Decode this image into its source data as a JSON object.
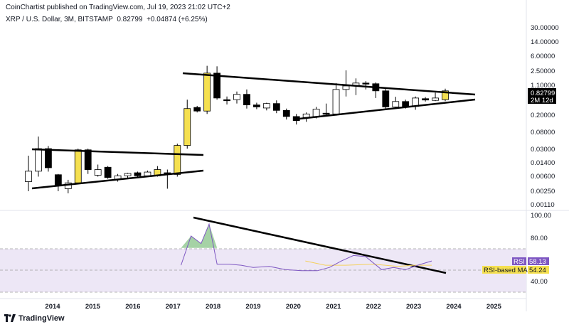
{
  "header": {
    "published": "CoinChartist published on TradingView.com, Jul 19, 2023 21:02 UTC+2",
    "symbol": "XRP / U.S. Dollar, 3M, BITSTAMP",
    "last": "0.82799",
    "change": "+0.04874 (+6.25%)"
  },
  "price_axis": {
    "ticks": [
      "30.00000",
      "14.00000",
      "6.00000",
      "2.50000",
      "1.10000",
      "0.20000",
      "0.08000",
      "0.03000",
      "0.01400",
      "0.00600",
      "0.00250",
      "0.00110"
    ],
    "current_price_label": "0.82799",
    "countdown_label": "2M 12d"
  },
  "rsi_axis": {
    "ticks": [
      "100.00",
      "80.00",
      "40.00"
    ],
    "rsi_label": "RSI",
    "rsi_value": "58.13",
    "ma_label": "RSI-based MA",
    "ma_value": "54.24"
  },
  "time_axis": {
    "labels": [
      "2014",
      "2015",
      "2016",
      "2017",
      "2018",
      "2019",
      "2020",
      "2021",
      "2022",
      "2023",
      "2024",
      "2025"
    ]
  },
  "footer": {
    "brand": "TradingView"
  },
  "colors": {
    "bull_candle_body": "#ffffff",
    "bear_candle_body": "#000000",
    "highlight_candle": "#f5e050",
    "rsi_line": "#7e57c2",
    "rsi_ma_line": "#f5d15c",
    "rsi_band_fill": "#ede7f6",
    "rsi_overbought_fill": "#7fbf7f",
    "trendline": "#000000"
  },
  "chart_data": {
    "type": "candlestick",
    "title": "XRP / U.S. Dollar, 3M, BITSTAMP",
    "y_scale": "log",
    "candles": [
      {
        "t": "2013-Q4",
        "o": 0.0045,
        "h": 0.02,
        "l": 0.0026,
        "c": 0.0082,
        "color": "bull"
      },
      {
        "t": "2014-Q1",
        "o": 0.0082,
        "h": 0.06,
        "l": 0.006,
        "c": 0.03,
        "color": "bull"
      },
      {
        "t": "2014-Q2",
        "o": 0.03,
        "h": 0.035,
        "l": 0.008,
        "c": 0.01,
        "color": "bear"
      },
      {
        "t": "2014-Q3",
        "o": 0.0067,
        "h": 0.007,
        "l": 0.0026,
        "c": 0.0035,
        "color": "bear"
      },
      {
        "t": "2014-Q4",
        "o": 0.003,
        "h": 0.005,
        "l": 0.0023,
        "c": 0.0042,
        "color": "bull"
      },
      {
        "t": "2015-Q1",
        "o": 0.0042,
        "h": 0.03,
        "l": 0.004,
        "c": 0.028,
        "color": "highlight"
      },
      {
        "t": "2015-Q2",
        "o": 0.028,
        "h": 0.03,
        "l": 0.007,
        "c": 0.009,
        "color": "bear"
      },
      {
        "t": "2015-Q3",
        "o": 0.009,
        "h": 0.012,
        "l": 0.006,
        "c": 0.0065,
        "color": "bull"
      },
      {
        "t": "2015-Q4",
        "o": 0.0103,
        "h": 0.011,
        "l": 0.0053,
        "c": 0.0057,
        "color": "bear"
      },
      {
        "t": "2016-Q1",
        "o": 0.0052,
        "h": 0.007,
        "l": 0.0045,
        "c": 0.0063,
        "color": "bull"
      },
      {
        "t": "2016-Q2",
        "o": 0.0063,
        "h": 0.0075,
        "l": 0.0055,
        "c": 0.0072,
        "color": "bull"
      },
      {
        "t": "2016-Q3",
        "o": 0.0075,
        "h": 0.008,
        "l": 0.0058,
        "c": 0.0063,
        "color": "bear"
      },
      {
        "t": "2016-Q4",
        "o": 0.0063,
        "h": 0.0085,
        "l": 0.006,
        "c": 0.0078,
        "color": "bull"
      },
      {
        "t": "2017-Q1",
        "o": 0.0063,
        "h": 0.011,
        "l": 0.006,
        "c": 0.009,
        "color": "highlight"
      },
      {
        "t": "2017-Q2",
        "o": 0.0075,
        "h": 0.009,
        "l": 0.003,
        "c": 0.0068,
        "color": "bear"
      },
      {
        "t": "2017-Q3",
        "o": 0.0068,
        "h": 0.04,
        "l": 0.006,
        "c": 0.036,
        "color": "highlight"
      },
      {
        "t": "2017-Q4",
        "o": 0.036,
        "h": 0.5,
        "l": 0.03,
        "c": 0.3,
        "color": "highlight"
      },
      {
        "t": "2018-Q1",
        "o": 0.32,
        "h": 0.35,
        "l": 0.24,
        "c": 0.26,
        "color": "bear"
      },
      {
        "t": "2018-Q2",
        "o": 0.26,
        "h": 3.5,
        "l": 0.22,
        "c": 2.3,
        "color": "highlight"
      },
      {
        "t": "2018-Q3",
        "o": 2.3,
        "h": 3.4,
        "l": 0.5,
        "c": 0.55,
        "color": "bear"
      },
      {
        "t": "2018-Q4",
        "o": 0.5,
        "h": 0.6,
        "l": 0.38,
        "c": 0.5,
        "color": "bear"
      },
      {
        "t": "2019-Q1",
        "o": 0.5,
        "h": 0.8,
        "l": 0.4,
        "c": 0.68,
        "color": "bull"
      },
      {
        "t": "2019-Q2",
        "o": 0.68,
        "h": 0.9,
        "l": 0.3,
        "c": 0.37,
        "color": "bear"
      },
      {
        "t": "2019-Q3",
        "o": 0.37,
        "h": 0.42,
        "l": 0.29,
        "c": 0.33,
        "color": "bear"
      },
      {
        "t": "2019-Q4",
        "o": 0.31,
        "h": 0.42,
        "l": 0.27,
        "c": 0.4,
        "color": "bull"
      },
      {
        "t": "2020-Q1",
        "o": 0.4,
        "h": 0.48,
        "l": 0.23,
        "c": 0.27,
        "color": "bear"
      },
      {
        "t": "2020-Q2",
        "o": 0.27,
        "h": 0.3,
        "l": 0.16,
        "c": 0.19,
        "color": "bear"
      },
      {
        "t": "2020-Q3",
        "o": 0.19,
        "h": 0.22,
        "l": 0.12,
        "c": 0.15,
        "color": "bear"
      },
      {
        "t": "2020-Q4",
        "o": 0.18,
        "h": 0.24,
        "l": 0.14,
        "c": 0.22,
        "color": "bull"
      },
      {
        "t": "2021-Q1",
        "o": 0.19,
        "h": 0.33,
        "l": 0.17,
        "c": 0.29,
        "color": "bull"
      },
      {
        "t": "2021-Q2",
        "o": 0.22,
        "h": 0.4,
        "l": 0.2,
        "c": 0.23,
        "color": "bear"
      },
      {
        "t": "2021-Q3",
        "o": 0.22,
        "h": 1.3,
        "l": 0.2,
        "c": 0.9,
        "color": "bull"
      },
      {
        "t": "2021-Q4",
        "o": 0.9,
        "h": 2.7,
        "l": 0.6,
        "c": 1.1,
        "color": "bull"
      },
      {
        "t": "2022-Q1",
        "o": 1.1,
        "h": 1.7,
        "l": 0.65,
        "c": 1.3,
        "color": "bull"
      },
      {
        "t": "2022-Q2",
        "o": 1.3,
        "h": 1.45,
        "l": 0.9,
        "c": 1.25,
        "color": "bear"
      },
      {
        "t": "2022-Q3",
        "o": 1.25,
        "h": 1.35,
        "l": 0.55,
        "c": 0.83,
        "color": "bear"
      },
      {
        "t": "2022-Q4",
        "o": 0.83,
        "h": 0.93,
        "l": 0.3,
        "c": 0.33,
        "color": "bear"
      },
      {
        "t": "2023-Q1",
        "o": 0.33,
        "h": 0.59,
        "l": 0.3,
        "c": 0.45,
        "color": "bull"
      },
      {
        "t": "2023-Q2",
        "o": 0.45,
        "h": 0.5,
        "l": 0.3,
        "c": 0.34,
        "color": "bear"
      },
      {
        "t": "2023-Q3",
        "o": 0.34,
        "h": 0.6,
        "l": 0.28,
        "c": 0.55,
        "color": "bull"
      },
      {
        "t": "2023-Q4",
        "o": 0.53,
        "h": 0.58,
        "l": 0.45,
        "c": 0.49,
        "color": "bear"
      },
      {
        "t": "2024-Q1",
        "o": 0.48,
        "h": 0.75,
        "l": 0.46,
        "c": 0.55,
        "color": "bull"
      },
      {
        "t": "2024-Q2",
        "o": 0.5,
        "h": 0.94,
        "l": 0.46,
        "c": 0.83,
        "color": "highlight"
      }
    ],
    "rsi_series": [
      {
        "t": 2017.2,
        "v": 54
      },
      {
        "t": 2017.45,
        "v": 81
      },
      {
        "t": 2017.7,
        "v": 74
      },
      {
        "t": 2017.9,
        "v": 92
      },
      {
        "t": 2018.1,
        "v": 55
      },
      {
        "t": 2018.4,
        "v": 55
      },
      {
        "t": 2018.7,
        "v": 54
      },
      {
        "t": 2019.0,
        "v": 52
      },
      {
        "t": 2019.4,
        "v": 53
      },
      {
        "t": 2019.8,
        "v": 50
      },
      {
        "t": 2020.2,
        "v": 49
      },
      {
        "t": 2020.6,
        "v": 49
      },
      {
        "t": 2020.9,
        "v": 52
      },
      {
        "t": 2021.2,
        "v": 58
      },
      {
        "t": 2021.5,
        "v": 63
      },
      {
        "t": 2021.8,
        "v": 62
      },
      {
        "t": 2022.2,
        "v": 50
      },
      {
        "t": 2022.5,
        "v": 52
      },
      {
        "t": 2022.8,
        "v": 50
      },
      {
        "t": 2023.1,
        "v": 54
      },
      {
        "t": 2023.45,
        "v": 58
      }
    ],
    "rsi_ma_series": [
      {
        "t": 2020.3,
        "v": 58
      },
      {
        "t": 2020.8,
        "v": 54
      },
      {
        "t": 2021.3,
        "v": 54
      },
      {
        "t": 2022.0,
        "v": 55
      },
      {
        "t": 2022.6,
        "v": 53
      },
      {
        "t": 2023.0,
        "v": 54
      },
      {
        "t": 2023.45,
        "v": 54
      }
    ],
    "rsi_bands": {
      "upper": 70,
      "middle": 50,
      "lower": 30
    },
    "rsi_ylim": [
      20,
      100
    ],
    "xlim": [
      2013.6,
      2025.7
    ]
  }
}
